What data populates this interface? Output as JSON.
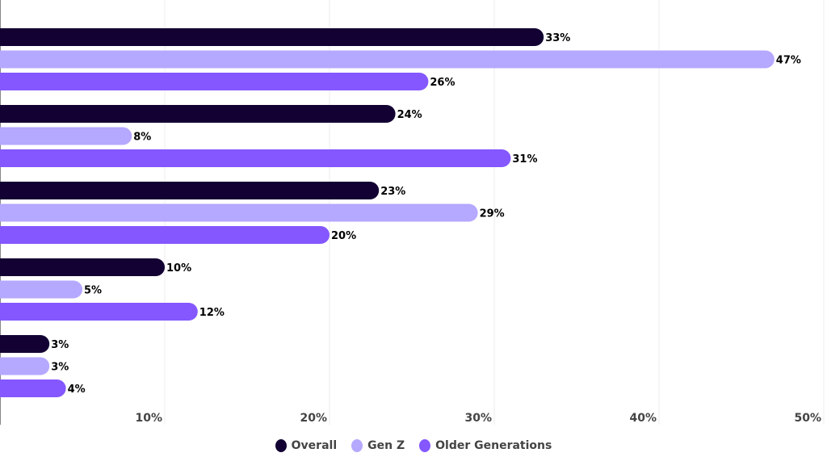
{
  "chart_data": {
    "type": "bar",
    "orientation": "horizontal",
    "categories": [
      "",
      "",
      "",
      "",
      ""
    ],
    "series": [
      {
        "name": "Overall",
        "color": "#120132",
        "values": [
          33,
          24,
          23,
          10,
          3
        ]
      },
      {
        "name": "Gen Z",
        "color": "#b5a8ff",
        "values": [
          47,
          8,
          29,
          5,
          3
        ]
      },
      {
        "name": "Older Generations",
        "color": "#8457ff",
        "values": [
          26,
          31,
          20,
          12,
          4
        ]
      }
    ],
    "xlim": [
      0,
      50
    ],
    "xticks": [
      "10%",
      "20%",
      "30%",
      "40%",
      "50%"
    ],
    "xtick_values": [
      10,
      20,
      30,
      40,
      50
    ],
    "value_suffix": "%",
    "grid": true,
    "legend": "bottom-center"
  }
}
